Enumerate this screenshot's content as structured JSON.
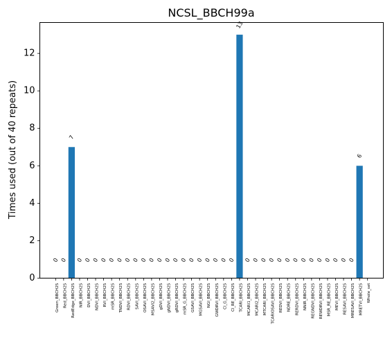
{
  "chart_data": {
    "type": "bar",
    "title": "NCSL_BBCH99a",
    "xlabel": "",
    "ylabel": "Times used (out of 40 repeats)",
    "ylim": [
      0,
      13.65
    ],
    "yticks": [
      0,
      2,
      4,
      6,
      8,
      10,
      12
    ],
    "categories": [
      "Green_BBCH25",
      "Red_BBCH25",
      "RedEdge_BBCH25",
      "NIR_BBCH25",
      "DVI_BBCH25",
      "NDVI_BBCH25",
      "RVI_BBCH25",
      "mSR_BBCH25",
      "TNDVI_BBCH25",
      "RDVI_BBCH25",
      "SAVI_BBCH25",
      "OSAVI_BBCH25",
      "MSAVI2_BBCH25",
      "gDVI_BBCH25",
      "gNDVI_BBCH25",
      "gRDVI_BBCH25",
      "mSR_G_BBCH25",
      "GSAVI_BBCH25",
      "MGSAVI_BBCH25",
      "NGI_BBCH25",
      "GWDRVI_BBCH25",
      "CI_G_BBCH25",
      "CI_RE_BBCH25",
      "TCARI_BBCH25",
      "MCARI1_BBCH25",
      "MCARI2_BBCH25",
      "MTCARI_BBCH25",
      "TCARIOSAVI_BBCH25",
      "REDVI_BBCH25",
      "NDRE_BBCH25",
      "RERDVI_BBCH25",
      "NNIR_BBCH25",
      "REGNDVI_BBCH25",
      "REWDRVI_BBCH25",
      "MSR_RE_BBCH25",
      "MEVI_BBCH25",
      "RESAVI_BBCH25",
      "MRESAVI_BBCH25",
      "MRETVI_BBCH25",
      "Whole_set"
    ],
    "values": [
      0,
      0,
      7,
      0,
      0,
      0,
      0,
      0,
      0,
      0,
      0,
      0,
      0,
      0,
      0,
      0,
      0,
      0,
      0,
      0,
      0,
      0,
      0,
      13,
      0,
      0,
      0,
      0,
      0,
      0,
      0,
      0,
      0,
      0,
      0,
      0,
      0,
      0,
      6,
      null
    ],
    "value_labels": [
      "0",
      "0",
      "7",
      "0",
      "0",
      "0",
      "0",
      "0",
      "0",
      "0",
      "0",
      "0",
      "0",
      "0",
      "0",
      "0",
      "0",
      "0",
      "0",
      "0",
      "0",
      "0",
      "0",
      "13",
      "0",
      "0",
      "0",
      "0",
      "0",
      "0",
      "0",
      "0",
      "0",
      "0",
      "0",
      "0",
      "0",
      "0",
      "6",
      ""
    ],
    "bar_color": "#1f77b4",
    "grid": false,
    "legend": "none"
  }
}
